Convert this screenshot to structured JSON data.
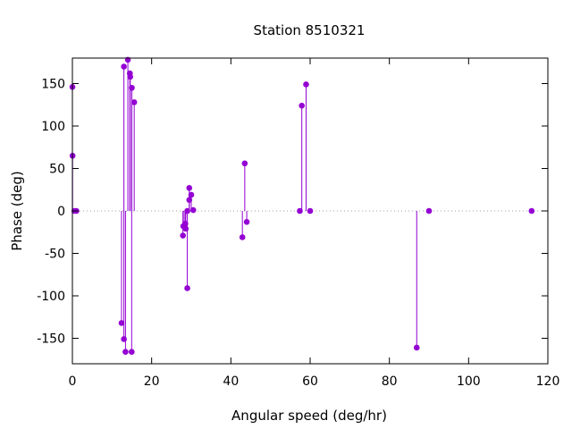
{
  "chart_data": {
    "type": "scatter",
    "style": "impulses-with-points",
    "title": "Station 8510321",
    "xlabel": "Angular speed (deg/hr)",
    "ylabel": "Phase (deg)",
    "xlim": [
      0,
      120
    ],
    "ylim": [
      -180,
      180
    ],
    "xticks": [
      0,
      20,
      40,
      60,
      80,
      100,
      120
    ],
    "yticks": [
      -150,
      -100,
      -50,
      0,
      50,
      100,
      150
    ],
    "zero_line": "dotted",
    "grid": false,
    "color": "#9400d3",
    "series": [
      {
        "points": [
          {
            "x": 0.0,
            "y": 146
          },
          {
            "x": 0.04,
            "y": 65
          },
          {
            "x": 0.5,
            "y": 0
          },
          {
            "x": 1.0,
            "y": 0
          },
          {
            "x": 12.4,
            "y": -132
          },
          {
            "x": 13.0,
            "y": -151
          },
          {
            "x": 13.0,
            "y": 170
          },
          {
            "x": 13.4,
            "y": -166
          },
          {
            "x": 14.0,
            "y": 178
          },
          {
            "x": 14.5,
            "y": 162
          },
          {
            "x": 14.6,
            "y": 158
          },
          {
            "x": 14.96,
            "y": -166
          },
          {
            "x": 15.0,
            "y": 145
          },
          {
            "x": 15.6,
            "y": 128
          },
          {
            "x": 27.9,
            "y": -29
          },
          {
            "x": 28.0,
            "y": -18
          },
          {
            "x": 28.4,
            "y": -20
          },
          {
            "x": 28.5,
            "y": -15
          },
          {
            "x": 28.6,
            "y": -21
          },
          {
            "x": 29.0,
            "y": 0
          },
          {
            "x": 29.0,
            "y": -91
          },
          {
            "x": 29.5,
            "y": 13
          },
          {
            "x": 29.5,
            "y": 27
          },
          {
            "x": 30.0,
            "y": 19
          },
          {
            "x": 30.5,
            "y": 1
          },
          {
            "x": 42.9,
            "y": -31
          },
          {
            "x": 43.5,
            "y": 56
          },
          {
            "x": 44.0,
            "y": -13
          },
          {
            "x": 57.4,
            "y": 0
          },
          {
            "x": 57.9,
            "y": 124
          },
          {
            "x": 58.98,
            "y": 149
          },
          {
            "x": 60.0,
            "y": 0
          },
          {
            "x": 86.9,
            "y": -161
          },
          {
            "x": 90.0,
            "y": 0
          },
          {
            "x": 115.9,
            "y": 0
          }
        ]
      }
    ]
  }
}
